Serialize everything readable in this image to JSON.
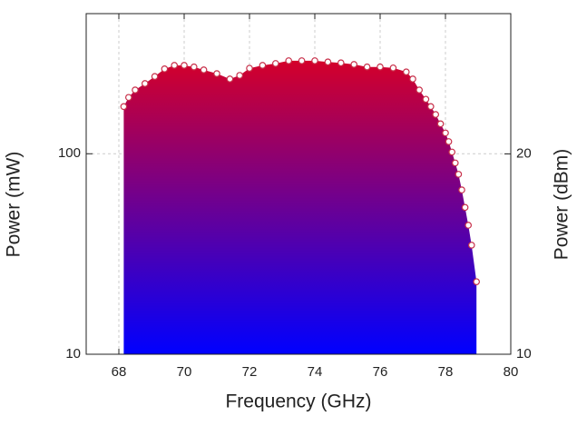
{
  "chart_data": {
    "type": "area",
    "x_label": "Frequency (GHz)",
    "y_label": "Power (mW)",
    "y2_label": "Power (dBm)",
    "x": [
      68.15,
      68.3,
      68.5,
      68.8,
      69.1,
      69.4,
      69.7,
      70.0,
      70.3,
      70.6,
      71.0,
      71.4,
      71.7,
      72.0,
      72.4,
      72.8,
      73.2,
      73.6,
      74.0,
      74.4,
      74.8,
      75.2,
      75.6,
      76.0,
      76.4,
      76.8,
      77.0,
      77.2,
      77.4,
      77.55,
      77.7,
      77.85,
      78.0,
      78.1,
      78.2,
      78.3,
      78.4,
      78.5,
      78.6,
      78.7,
      78.8,
      78.95
    ],
    "series": [
      {
        "color": "#c8304a",
        "values": [
          172,
          191,
          208,
          224,
          243,
          265,
          276,
          276,
          271,
          262,
          251,
          236,
          246,
          267,
          276,
          282,
          291,
          291,
          291,
          287,
          284,
          279,
          271,
          271,
          268,
          256,
          236,
          208,
          187,
          172,
          157,
          141,
          127,
          115,
          102,
          90,
          79,
          66,
          54,
          44,
          35,
          23
        ]
      }
    ],
    "gradient": [
      "#d4002a",
      "#0000ff"
    ],
    "xlim": [
      67,
      80
    ],
    "xticks": [
      68,
      70,
      72,
      74,
      76,
      78,
      80
    ],
    "ylim": [
      10,
      500
    ],
    "yticks": [
      10,
      100
    ],
    "log_y": true,
    "y2lim": [
      10,
      27
    ],
    "y2ticks": [
      10,
      20
    ],
    "grid": true
  }
}
